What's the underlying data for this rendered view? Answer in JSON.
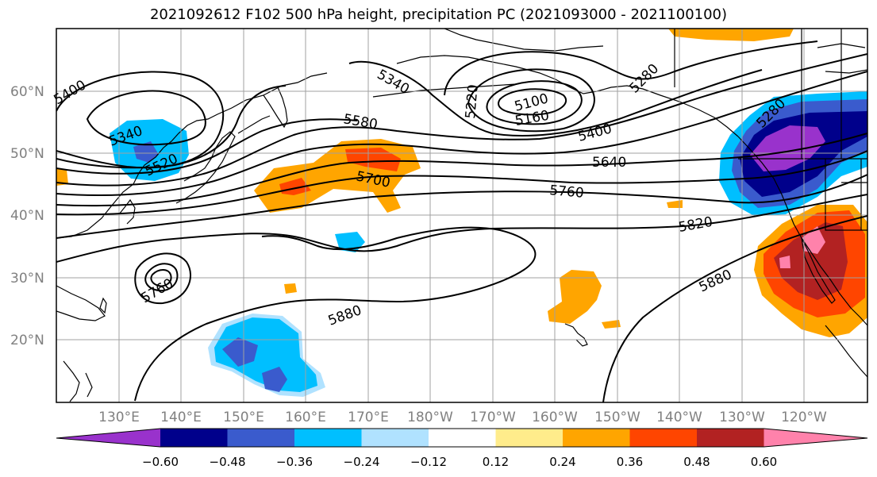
{
  "title": "2021092612 F102 500 hPa height, precipitation PC (2021093000 - 2021100100)",
  "lat_labels": [
    "60°N",
    "50°N",
    "40°N",
    "30°N",
    "20°N"
  ],
  "lon_labels": [
    "130°E",
    "140°E",
    "150°E",
    "160°E",
    "170°E",
    "180°W",
    "170°W",
    "160°W",
    "150°W",
    "140°W",
    "130°W",
    "120°W"
  ],
  "contour_labels": [
    "5400",
    "5340",
    "5520",
    "5340",
    "5220",
    "5100",
    "5160",
    "5280",
    "5400",
    "5580",
    "5640",
    "5700",
    "5760",
    "5760",
    "5820",
    "5880",
    "5880",
    "5280"
  ],
  "colorbar": {
    "tick_labels": [
      "−0.60",
      "−0.48",
      "−0.36",
      "−0.24",
      "−0.12",
      "0.12",
      "0.24",
      "0.36",
      "0.48",
      "0.60"
    ],
    "colors": [
      "#9932cc",
      "#00008b",
      "#3a5bcd",
      "#00bfff",
      "#b0e2ff",
      "#ffffff",
      "#ffec8b",
      "#ffa500",
      "#ff4500",
      "#b22222",
      "#ff82ab"
    ]
  }
}
